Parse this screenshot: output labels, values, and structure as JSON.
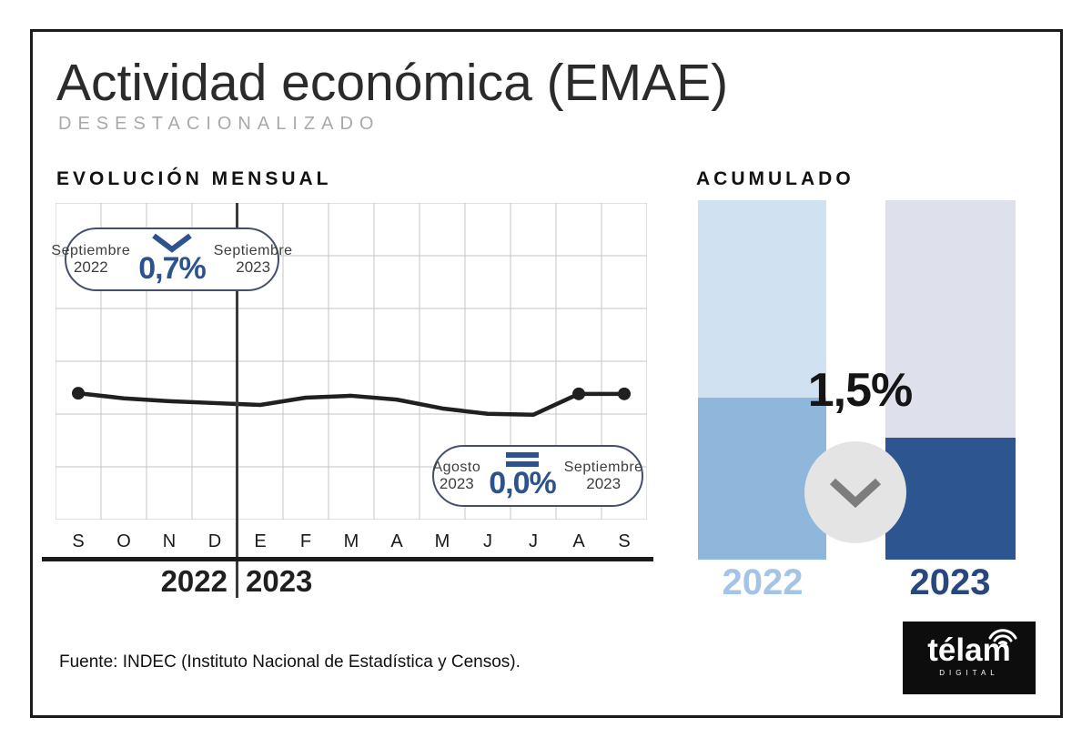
{
  "header": {
    "title": "Actividad económica (EMAE)",
    "subtitle": "DESESTACIONALIZADO"
  },
  "sections": {
    "monthly": {
      "heading": "EVOLUCIÓN MENSUAL",
      "year_left": "2022",
      "year_right": "2023"
    },
    "accumulated": {
      "heading": "ACUMULADO",
      "change_label": "1,5%",
      "direction": "down",
      "bars": [
        {
          "label": "2022",
          "track_color": "#d0e1f1",
          "fill_color": "#8fb7dc",
          "label_color": "#a3c4e6"
        },
        {
          "label": "2023",
          "track_color": "#dee1ec",
          "fill_color": "#2d5590",
          "label_color": "#27477e"
        }
      ]
    }
  },
  "callouts": {
    "yoy": {
      "from_label": "Septiembre",
      "from_year": "2022",
      "value": "0,7%",
      "to_label": "Septiembre",
      "to_year": "2023",
      "direction": "down"
    },
    "mom": {
      "from_label": "Agosto",
      "from_year": "2023",
      "value": "0,0%",
      "to_label": "Septiembre",
      "to_year": "2023",
      "direction": "equal"
    }
  },
  "footer": {
    "source": "Fuente: INDEC (Instituto Nacional de Estadística y Censos)."
  },
  "logo": {
    "brand": "télam",
    "sub": "DIGITAL"
  },
  "colors": {
    "accent_blue": "#2c538e",
    "line": "#202020",
    "grid": "#c6c6c6",
    "divider": "#3a3a3a",
    "circle_bg": "#e4e4e4",
    "circle_arrow": "#7d7d7d"
  },
  "chart_data": [
    {
      "type": "line",
      "title": "EVOLUCIÓN MENSUAL",
      "subtitle": "DESESTACIONALIZADO",
      "x_labels": [
        "S",
        "O",
        "N",
        "D",
        "E",
        "F",
        "M",
        "A",
        "M",
        "J",
        "J",
        "A",
        "S"
      ],
      "x_year_groups": [
        {
          "year": "2022",
          "months": "S O N D"
        },
        {
          "year": "2023",
          "months": "E F M A M J J A S"
        }
      ],
      "y_axis": "none shown (seasonally adjusted index level)",
      "y_norm_from_top": [
        0.601,
        0.617,
        0.626,
        0.632,
        0.638,
        0.615,
        0.609,
        0.621,
        0.649,
        0.666,
        0.669,
        0.603,
        0.603
      ],
      "marked_points": [
        0,
        11,
        12
      ],
      "grid": {
        "cols": 13,
        "rows": 6
      },
      "annotations": [
        {
          "from": "Septiembre 2022",
          "to": "Septiembre 2023",
          "change": "0,7%",
          "direction": "down"
        },
        {
          "from": "Agosto 2023",
          "to": "Septiembre 2023",
          "change": "0,0%",
          "direction": "equal"
        }
      ]
    },
    {
      "type": "bar",
      "title": "ACUMULADO",
      "categories": [
        "2022",
        "2023"
      ],
      "fill_fraction_of_bar": [
        0.45,
        0.34
      ],
      "change_label": "1,5%",
      "direction": "down"
    }
  ]
}
